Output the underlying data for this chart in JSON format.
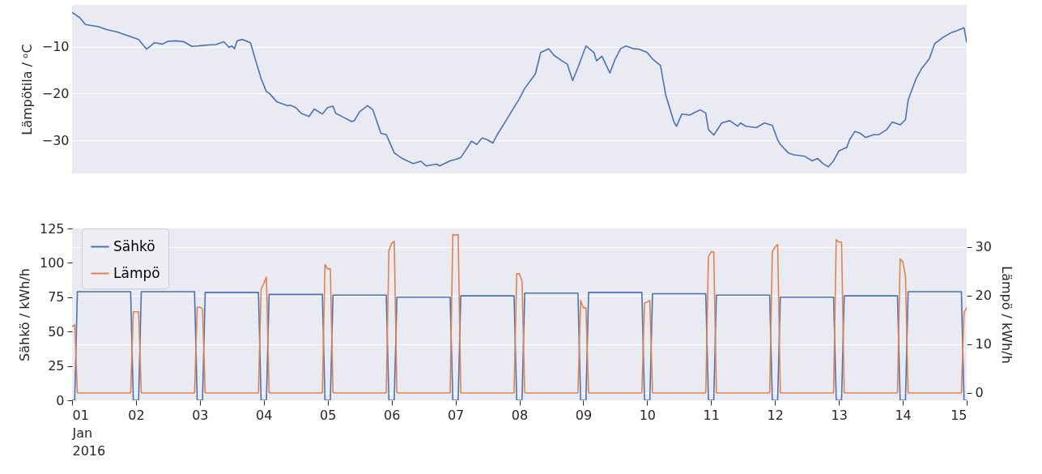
{
  "chart_data": [
    {
      "type": "line",
      "ylabel": "Lämpötila / ᵒC",
      "xlim": [
        "2016-01-01T00:00",
        "2016-01-15T00:00"
      ],
      "ylim": [
        -37.1,
        -1
      ],
      "yticks": [
        -30,
        -20,
        -10
      ],
      "grid": "y",
      "tick_labels": "y",
      "series": [
        {
          "color": "#4c72b0",
          "x": [
            "2016-01-01T00:00",
            "2016-01-01T03:00",
            "2016-01-01T05:00",
            "2016-01-01T10:00",
            "2016-01-01T13:00",
            "2016-01-01T17:00",
            "2016-01-01T22:00",
            "2016-01-02T01:00",
            "2016-01-02T04:00",
            "2016-01-02T07:00",
            "2016-01-02T10:00",
            "2016-01-02T12:00",
            "2016-01-02T15:00",
            "2016-01-02T18:00",
            "2016-01-02T21:00",
            "2016-01-02T23:00",
            "2016-01-03T03:00",
            "2016-01-03T06:00",
            "2016-01-03T09:00",
            "2016-01-03T11:00",
            "2016-01-03T12:00",
            "2016-01-03T13:00",
            "2016-01-03T14:00",
            "2016-01-03T16:00",
            "2016-01-03T19:00",
            "2016-01-03T21:00",
            "2016-01-03T23:00",
            "2016-01-04T01:00",
            "2016-01-04T02:00",
            "2016-01-04T05:00",
            "2016-01-04T09:00",
            "2016-01-04T10:00",
            "2016-01-04T12:00",
            "2016-01-04T14:00",
            "2016-01-04T17:00",
            "2016-01-04T19:00",
            "2016-01-04T22:00",
            "2016-01-05T00:00",
            "2016-01-05T02:00",
            "2016-01-05T03:00",
            "2016-01-05T06:00",
            "2016-01-05T09:00",
            "2016-01-05T10:00",
            "2016-01-05T12:00",
            "2016-01-05T15:00",
            "2016-01-05T17:00",
            "2016-01-05T20:00",
            "2016-01-05T22:00",
            "2016-01-06T01:00",
            "2016-01-06T04:00",
            "2016-01-06T08:00",
            "2016-01-06T11:00",
            "2016-01-06T13:00",
            "2016-01-06T17:00",
            "2016-01-06T18:00",
            "2016-01-06T22:00",
            "2016-01-07T00:00",
            "2016-01-07T02:00",
            "2016-01-07T04:00",
            "2016-01-07T06:00",
            "2016-01-07T08:00",
            "2016-01-07T10:00",
            "2016-01-07T12:00",
            "2016-01-07T14:00",
            "2016-01-07T16:00",
            "2016-01-07T18:00",
            "2016-01-07T21:00",
            "2016-01-08T00:00",
            "2016-01-08T02:00",
            "2016-01-08T06:00",
            "2016-01-08T08:00",
            "2016-01-08T11:00",
            "2016-01-08T13:00",
            "2016-01-08T16:00",
            "2016-01-08T18:00",
            "2016-01-08T20:00",
            "2016-01-08T22:00",
            "2016-01-09T01:00",
            "2016-01-09T04:00",
            "2016-01-09T05:00",
            "2016-01-09T07:00",
            "2016-01-09T09:00",
            "2016-01-09T10:00",
            "2016-01-09T12:00",
            "2016-01-09T14:00",
            "2016-01-09T16:00",
            "2016-01-09T19:00",
            "2016-01-09T21:00",
            "2016-01-10T00:00",
            "2016-01-10T02:00",
            "2016-01-10T05:00",
            "2016-01-10T07:00",
            "2016-01-10T10:00",
            "2016-01-10T11:00",
            "2016-01-10T13:00",
            "2016-01-10T16:00",
            "2016-01-10T18:00",
            "2016-01-10T20:00",
            "2016-01-10T22:00",
            "2016-01-10T23:00",
            "2016-01-11T01:00",
            "2016-01-11T04:00",
            "2016-01-11T07:00",
            "2016-01-11T10:00",
            "2016-01-11T11:00",
            "2016-01-11T13:00",
            "2016-01-11T17:00",
            "2016-01-11T20:00",
            "2016-01-11T23:00",
            "2016-01-12T01:00",
            "2016-01-12T02:00",
            "2016-01-12T05:00",
            "2016-01-12T07:00",
            "2016-01-12T11:00",
            "2016-01-12T14:00",
            "2016-01-12T16:00",
            "2016-01-12T18:00",
            "2016-01-12T20:00",
            "2016-01-12T22:00",
            "2016-01-13T00:00",
            "2016-01-13T03:00",
            "2016-01-13T04:00",
            "2016-01-13T06:00",
            "2016-01-13T08:00",
            "2016-01-13T10:00",
            "2016-01-13T13:00",
            "2016-01-13T15:00",
            "2016-01-13T18:00",
            "2016-01-13T20:00",
            "2016-01-13T23:00",
            "2016-01-14T01:00",
            "2016-01-14T02:00",
            "2016-01-14T05:00",
            "2016-01-14T07:00",
            "2016-01-14T10:00",
            "2016-01-14T12:00",
            "2016-01-14T15:00",
            "2016-01-14T18:00",
            "2016-01-14T20:00",
            "2016-01-14T23:00",
            "2016-01-15T00:00"
          ],
          "values": [
            -2.6,
            -3.8,
            -5.2,
            -5.7,
            -6.3,
            -6.8,
            -7.8,
            -8.4,
            -10.5,
            -9.1,
            -9.4,
            -8.8,
            -8.7,
            -8.9,
            -9.9,
            -9.8,
            -9.6,
            -9.5,
            -8.9,
            -10.1,
            -9.8,
            -10.4,
            -8.7,
            -8.4,
            -9.1,
            -13.0,
            -16.8,
            -19.6,
            -19.9,
            -21.8,
            -22.6,
            -22.5,
            -23.0,
            -24.2,
            -24.9,
            -23.3,
            -24.4,
            -23.0,
            -22.7,
            -24.2,
            -25.1,
            -26.0,
            -25.8,
            -23.9,
            -22.6,
            -23.5,
            -28.5,
            -28.8,
            -32.7,
            -33.9,
            -35.0,
            -34.5,
            -35.5,
            -35.1,
            -35.5,
            -34.4,
            -34.1,
            -33.7,
            -32.0,
            -30.2,
            -30.9,
            -29.5,
            -29.9,
            -30.6,
            -28.5,
            -26.7,
            -23.9,
            -21.1,
            -18.9,
            -15.8,
            -11.2,
            -10.4,
            -11.8,
            -13.0,
            -13.7,
            -17.2,
            -14.4,
            -9.8,
            -11.2,
            -13.0,
            -12.0,
            -14.4,
            -15.6,
            -12.6,
            -10.4,
            -9.8,
            -10.4,
            -10.5,
            -11.2,
            -12.6,
            -14.0,
            -20.4,
            -26.0,
            -27.0,
            -24.4,
            -24.6,
            -24.0,
            -23.5,
            -24.2,
            -27.7,
            -28.9,
            -26.3,
            -25.8,
            -27.0,
            -26.3,
            -27.0,
            -27.3,
            -26.3,
            -26.8,
            -29.9,
            -30.9,
            -32.7,
            -33.1,
            -33.4,
            -34.4,
            -33.9,
            -35.0,
            -35.7,
            -34.4,
            -32.3,
            -31.5,
            -29.9,
            -28.1,
            -28.5,
            -29.4,
            -28.8,
            -28.8,
            -27.7,
            -26.1,
            -26.7,
            -25.6,
            -21.4,
            -16.8,
            -14.7,
            -12.5,
            -9.3,
            -8.0,
            -7.0,
            -6.6,
            -5.9,
            -9.1
          ]
        }
      ]
    },
    {
      "type": "line",
      "ylabel": "Sähkö / kWh/h",
      "y2label": "Lämpö / kWh/h",
      "xlim": [
        "2016-01-01T00:00",
        "2016-01-15T00:00"
      ],
      "xticks": [
        {
          "value": "2016-01-01T00:00",
          "label": "01\nJan\n2016"
        },
        {
          "value": "2016-01-02T00:00",
          "label": "02"
        },
        {
          "value": "2016-01-03T00:00",
          "label": "03"
        },
        {
          "value": "2016-01-04T00:00",
          "label": "04"
        },
        {
          "value": "2016-01-05T00:00",
          "label": "05"
        },
        {
          "value": "2016-01-06T00:00",
          "label": "06"
        },
        {
          "value": "2016-01-07T00:00",
          "label": "07"
        },
        {
          "value": "2016-01-08T00:00",
          "label": "08"
        },
        {
          "value": "2016-01-09T00:00",
          "label": "09"
        },
        {
          "value": "2016-01-10T00:00",
          "label": "10"
        },
        {
          "value": "2016-01-11T00:00",
          "label": "11"
        },
        {
          "value": "2016-01-12T00:00",
          "label": "12"
        },
        {
          "value": "2016-01-13T00:00",
          "label": "13"
        },
        {
          "value": "2016-01-14T00:00",
          "label": "14"
        },
        {
          "value": "2016-01-15T00:00",
          "label": "15"
        }
      ],
      "ylim": [
        0,
        125
      ],
      "yticks": [
        0,
        25,
        50,
        75,
        100,
        125
      ],
      "y2lim": [
        -1.5,
        33.8
      ],
      "y2ticks": [
        0,
        10,
        20,
        30
      ],
      "grid": "y2",
      "legend": "top left",
      "series": [
        {
          "name": "Sähkö",
          "color": "#4c72b0",
          "x": [
            "2016-01-01T00:00",
            "2016-01-01T01:00",
            "2016-01-01T02:00",
            "2016-01-01T22:00",
            "2016-01-01T23:00",
            "2016-01-02T01:00",
            "2016-01-02T02:00",
            "2016-01-02T22:00",
            "2016-01-02T23:00",
            "2016-01-03T01:00",
            "2016-01-03T02:00",
            "2016-01-03T22:00",
            "2016-01-03T23:00",
            "2016-01-04T01:00",
            "2016-01-04T02:00",
            "2016-01-04T22:00",
            "2016-01-04T23:00",
            "2016-01-05T01:00",
            "2016-01-05T02:00",
            "2016-01-05T22:00",
            "2016-01-05T23:00",
            "2016-01-06T01:00",
            "2016-01-06T02:00",
            "2016-01-06T22:00",
            "2016-01-06T23:00",
            "2016-01-07T01:00",
            "2016-01-07T02:00",
            "2016-01-07T22:00",
            "2016-01-07T23:00",
            "2016-01-08T01:00",
            "2016-01-08T02:00",
            "2016-01-08T22:00",
            "2016-01-08T23:00",
            "2016-01-09T01:00",
            "2016-01-09T02:00",
            "2016-01-09T22:00",
            "2016-01-09T23:00",
            "2016-01-10T01:00",
            "2016-01-10T02:00",
            "2016-01-10T22:00",
            "2016-01-10T23:00",
            "2016-01-11T01:00",
            "2016-01-11T02:00",
            "2016-01-11T22:00",
            "2016-01-11T23:00",
            "2016-01-12T01:00",
            "2016-01-12T02:00",
            "2016-01-12T22:00",
            "2016-01-12T23:00",
            "2016-01-13T01:00",
            "2016-01-13T02:00",
            "2016-01-13T22:00",
            "2016-01-13T23:00",
            "2016-01-14T01:00",
            "2016-01-14T02:00",
            "2016-01-14T22:00",
            "2016-01-14T23:00",
            "2016-01-15T00:00"
          ],
          "values": [
            0,
            0,
            79,
            79,
            0,
            0,
            79,
            79,
            0,
            0,
            78.5,
            78.5,
            0,
            0,
            77,
            77,
            0,
            0,
            76.5,
            76.5,
            0,
            0,
            75,
            75,
            0,
            0,
            76,
            76,
            0,
            0,
            78,
            78,
            0,
            0,
            78.5,
            78.5,
            0,
            0,
            77.5,
            77.5,
            0,
            0,
            76.5,
            76.5,
            0,
            0,
            75,
            75,
            0,
            0,
            76,
            76,
            0,
            0,
            79,
            79,
            0,
            0
          ]
        },
        {
          "name": "Lämpö",
          "color": "#dd8452",
          "axis": "y2",
          "x": [
            "2016-01-01T00:00",
            "2016-01-01T01:00",
            "2016-01-01T02:00",
            "2016-01-01T22:00",
            "2016-01-01T23:00",
            "2016-01-02T00:00",
            "2016-01-02T01:00",
            "2016-01-02T02:00",
            "2016-01-02T22:00",
            "2016-01-02T23:00",
            "2016-01-03T00:00",
            "2016-01-03T01:00",
            "2016-01-03T02:00",
            "2016-01-03T22:00",
            "2016-01-03T23:00",
            "2016-01-04T00:00",
            "2016-01-04T01:00",
            "2016-01-04T02:00",
            "2016-01-04T22:00",
            "2016-01-04T23:00",
            "2016-01-05T00:00",
            "2016-01-05T01:00",
            "2016-01-05T02:00",
            "2016-01-05T22:00",
            "2016-01-05T23:00",
            "2016-01-06T00:00",
            "2016-01-06T01:00",
            "2016-01-06T02:00",
            "2016-01-06T22:00",
            "2016-01-06T23:00",
            "2016-01-07T00:00",
            "2016-01-07T01:00",
            "2016-01-07T02:00",
            "2016-01-07T22:00",
            "2016-01-07T23:00",
            "2016-01-08T00:00",
            "2016-01-08T01:00",
            "2016-01-08T02:00",
            "2016-01-08T22:00",
            "2016-01-08T23:00",
            "2016-01-09T00:00",
            "2016-01-09T01:00",
            "2016-01-09T02:00",
            "2016-01-09T22:00",
            "2016-01-09T23:00",
            "2016-01-10T00:00",
            "2016-01-10T01:00",
            "2016-01-10T02:00",
            "2016-01-10T22:00",
            "2016-01-10T23:00",
            "2016-01-11T00:00",
            "2016-01-11T01:00",
            "2016-01-11T02:00",
            "2016-01-11T22:00",
            "2016-01-11T23:00",
            "2016-01-12T00:00",
            "2016-01-12T01:00",
            "2016-01-12T02:00",
            "2016-01-12T22:00",
            "2016-01-12T23:00",
            "2016-01-13T00:00",
            "2016-01-13T01:00",
            "2016-01-13T02:00",
            "2016-01-13T22:00",
            "2016-01-13T23:00",
            "2016-01-14T00:00",
            "2016-01-14T01:00",
            "2016-01-14T02:00",
            "2016-01-14T22:00",
            "2016-01-14T23:00",
            "2016-01-15T00:00"
          ],
          "values": [
            13.6,
            14,
            0,
            0,
            16.7,
            16.7,
            16.7,
            0,
            0,
            17.6,
            17.6,
            17.3,
            0,
            0,
            21.3,
            22.5,
            23.8,
            0,
            0,
            26.4,
            25.5,
            25.5,
            0,
            0,
            29.2,
            30.7,
            31.2,
            0,
            0,
            32.6,
            32.4,
            32.6,
            0,
            0,
            24.5,
            24.5,
            23.0,
            0,
            0,
            19.0,
            17.5,
            17.5,
            0,
            0,
            18.5,
            18.7,
            19.0,
            0,
            0,
            28.0,
            29.0,
            29.0,
            0,
            0,
            29.0,
            30.0,
            30.5,
            0,
            0,
            31.5,
            31.0,
            31.0,
            0,
            0,
            27.5,
            27.0,
            24.0,
            0,
            0,
            16.5,
            17.5
          ]
        }
      ]
    }
  ]
}
